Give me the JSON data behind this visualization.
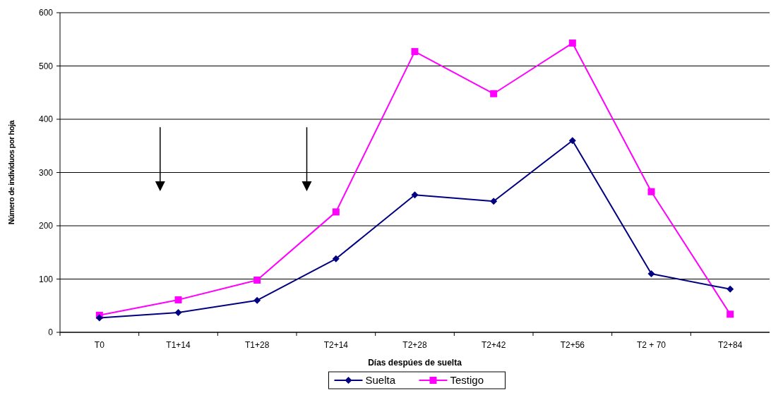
{
  "chart_data": {
    "type": "line",
    "xlabel": "Días despúes de suelta",
    "ylabel": "Número de individuos por hoja",
    "categories": [
      "T0",
      "T1+14",
      "T1+28",
      "T2+14",
      "T2+28",
      "T2+42",
      "T2+56",
      "T2 + 70",
      "T2+84"
    ],
    "series": [
      {
        "name": "Suelta",
        "color": "#000080",
        "marker": "diamond",
        "values": [
          27,
          37,
          60,
          138,
          258,
          246,
          360,
          110,
          81
        ]
      },
      {
        "name": "Testigo",
        "color": "#ff00ff",
        "marker": "square",
        "values": [
          32,
          61,
          98,
          226,
          527,
          448,
          543,
          264,
          34
        ]
      }
    ],
    "ylim": [
      0,
      600
    ],
    "yticks": [
      0,
      100,
      200,
      300,
      400,
      500,
      600
    ],
    "grid": "y",
    "legend": "bottom"
  }
}
